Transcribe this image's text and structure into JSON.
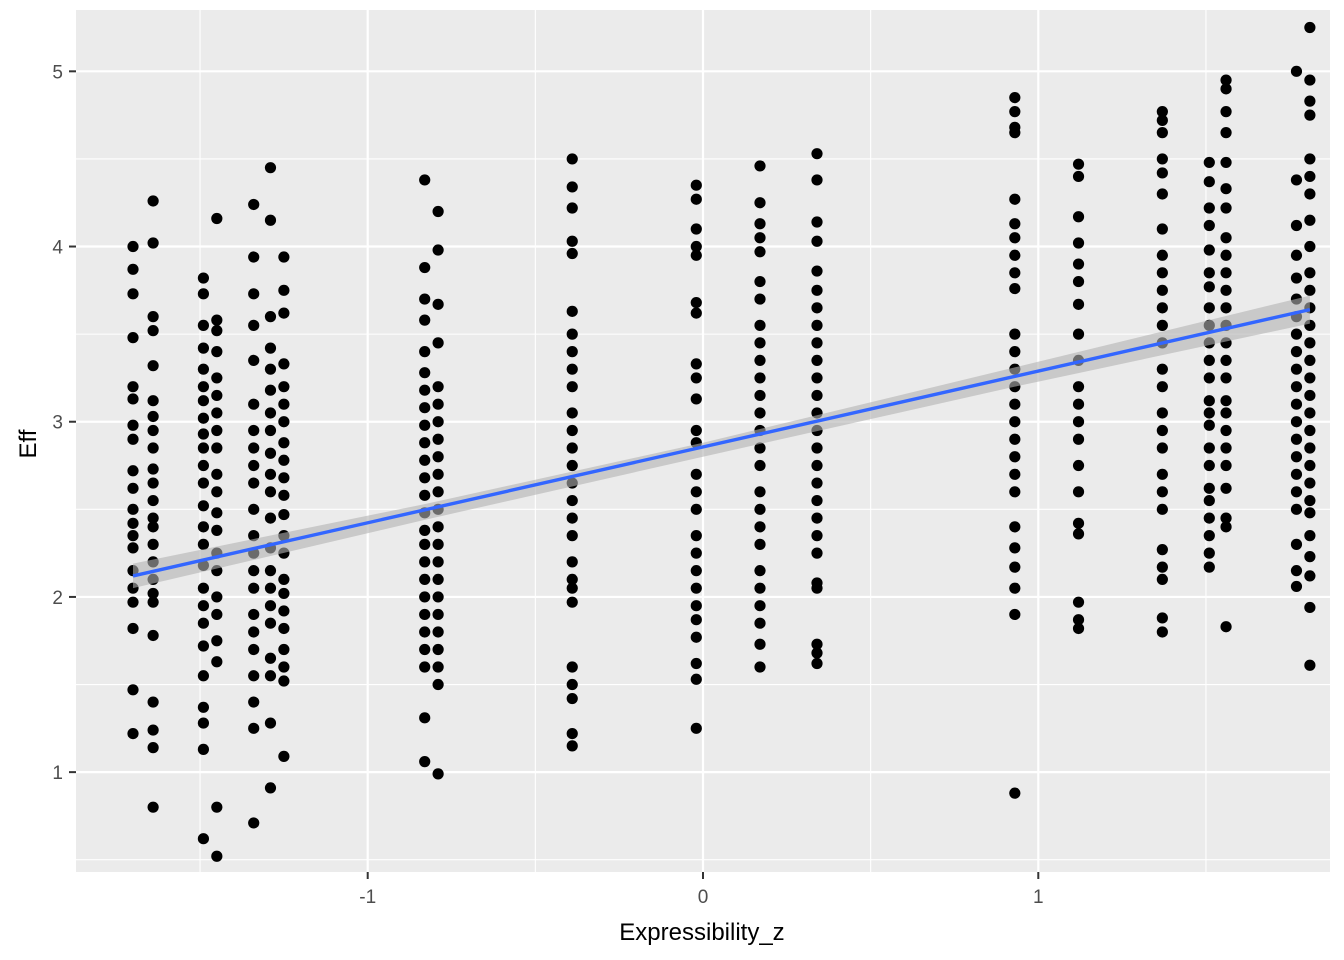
{
  "chart_data": {
    "type": "scatter",
    "xlabel": "Expressibility_z",
    "ylabel": "Eff",
    "xlim": [
      -1.87,
      1.87
    ],
    "ylim": [
      0.43,
      5.35
    ],
    "x_ticks": [
      -1,
      0,
      1
    ],
    "x_tick_labels": [
      "-1",
      "0",
      "1"
    ],
    "y_ticks": [
      1,
      2,
      3,
      4,
      5
    ],
    "y_tick_labels": [
      "1",
      "2",
      "3",
      "4",
      "5"
    ],
    "grid": true,
    "colors": {
      "panel": "#ebebeb",
      "grid": "#ffffff",
      "points": "#000000",
      "fit_line": "#3366ff",
      "ribbon": "#b3b3b3"
    },
    "groups": [
      {
        "x": -1.7,
        "values": [
          4.0,
          3.87,
          3.73,
          3.48,
          3.2,
          3.13,
          2.98,
          2.9,
          2.72,
          2.62,
          2.5,
          2.42,
          2.35,
          2.28,
          2.15,
          2.05,
          1.97,
          1.82,
          1.47,
          1.22
        ]
      },
      {
        "x": -1.64,
        "values": [
          4.26,
          4.02,
          3.6,
          3.52,
          3.32,
          3.12,
          3.03,
          2.95,
          2.85,
          2.73,
          2.65,
          2.55,
          2.45,
          2.4,
          2.3,
          2.2,
          2.1,
          2.02,
          1.97,
          1.78,
          1.4,
          1.24,
          1.14,
          0.8
        ]
      },
      {
        "x": -1.49,
        "values": [
          3.82,
          3.73,
          3.55,
          3.42,
          3.3,
          3.2,
          3.12,
          3.02,
          2.93,
          2.85,
          2.75,
          2.65,
          2.52,
          2.4,
          2.3,
          2.18,
          2.05,
          1.95,
          1.85,
          1.72,
          1.55,
          1.37,
          1.28,
          1.13,
          0.62
        ]
      },
      {
        "x": -1.45,
        "values": [
          4.16,
          3.58,
          3.52,
          3.4,
          3.25,
          3.15,
          3.05,
          2.95,
          2.85,
          2.7,
          2.6,
          2.48,
          2.38,
          2.25,
          2.15,
          2.0,
          1.9,
          1.75,
          1.63,
          0.8,
          0.52
        ]
      },
      {
        "x": -1.34,
        "values": [
          4.24,
          3.94,
          3.73,
          3.55,
          3.35,
          3.1,
          2.95,
          2.85,
          2.75,
          2.65,
          2.5,
          2.35,
          2.25,
          2.15,
          2.05,
          1.9,
          1.8,
          1.7,
          1.55,
          1.4,
          1.25,
          0.71
        ]
      },
      {
        "x": -1.29,
        "values": [
          4.45,
          4.15,
          3.6,
          3.42,
          3.3,
          3.18,
          3.05,
          2.95,
          2.82,
          2.7,
          2.6,
          2.45,
          2.28,
          2.15,
          2.05,
          1.95,
          1.85,
          1.65,
          1.55,
          1.28,
          0.91
        ]
      },
      {
        "x": -1.25,
        "values": [
          3.94,
          3.75,
          3.62,
          3.33,
          3.2,
          3.1,
          3.0,
          2.88,
          2.78,
          2.68,
          2.58,
          2.47,
          2.35,
          2.25,
          2.1,
          2.02,
          1.92,
          1.82,
          1.7,
          1.6,
          1.52,
          1.09
        ]
      },
      {
        "x": -0.83,
        "values": [
          4.38,
          3.88,
          3.7,
          3.58,
          3.4,
          3.28,
          3.18,
          3.08,
          2.98,
          2.88,
          2.78,
          2.68,
          2.58,
          2.48,
          2.38,
          2.3,
          2.2,
          2.1,
          2.0,
          1.9,
          1.8,
          1.7,
          1.6,
          1.31,
          1.06
        ]
      },
      {
        "x": -0.79,
        "values": [
          4.2,
          3.98,
          3.67,
          3.45,
          3.2,
          3.1,
          3.0,
          2.9,
          2.8,
          2.7,
          2.6,
          2.5,
          2.4,
          2.3,
          2.2,
          2.1,
          2.0,
          1.9,
          1.8,
          1.7,
          1.6,
          1.5,
          0.99
        ]
      },
      {
        "x": -0.39,
        "values": [
          4.5,
          4.34,
          4.22,
          4.03,
          3.96,
          3.63,
          3.5,
          3.4,
          3.3,
          3.2,
          3.05,
          2.95,
          2.85,
          2.75,
          2.65,
          2.55,
          2.45,
          2.35,
          2.2,
          2.1,
          2.05,
          1.97,
          1.6,
          1.5,
          1.42,
          1.22,
          1.15
        ]
      },
      {
        "x": -0.02,
        "values": [
          4.35,
          4.27,
          4.1,
          4.0,
          3.95,
          3.68,
          3.62,
          3.33,
          3.25,
          3.13,
          2.95,
          2.88,
          2.7,
          2.6,
          2.5,
          2.35,
          2.25,
          2.15,
          2.05,
          1.95,
          1.87,
          1.77,
          1.62,
          1.53,
          1.25
        ]
      },
      {
        "x": 0.17,
        "values": [
          4.46,
          4.25,
          4.13,
          4.05,
          3.97,
          3.8,
          3.7,
          3.55,
          3.45,
          3.35,
          3.25,
          3.15,
          3.05,
          2.95,
          2.85,
          2.75,
          2.6,
          2.5,
          2.4,
          2.3,
          2.15,
          2.05,
          1.95,
          1.85,
          1.73,
          1.6
        ]
      },
      {
        "x": 0.34,
        "values": [
          4.53,
          4.38,
          4.14,
          4.03,
          3.86,
          3.75,
          3.65,
          3.55,
          3.45,
          3.35,
          3.25,
          3.15,
          3.05,
          2.95,
          2.85,
          2.75,
          2.65,
          2.55,
          2.45,
          2.35,
          2.25,
          2.08,
          2.05,
          1.73,
          1.68,
          1.62
        ]
      },
      {
        "x": 0.93,
        "values": [
          4.85,
          4.77,
          4.68,
          4.65,
          4.27,
          4.13,
          4.05,
          3.95,
          3.85,
          3.76,
          3.5,
          3.4,
          3.3,
          3.2,
          3.1,
          3.0,
          2.9,
          2.8,
          2.7,
          2.6,
          2.4,
          2.28,
          2.17,
          2.05,
          1.9,
          0.88
        ]
      },
      {
        "x": 1.12,
        "values": [
          4.47,
          4.4,
          4.17,
          4.02,
          3.9,
          3.8,
          3.67,
          3.5,
          3.35,
          3.2,
          3.1,
          3.0,
          2.9,
          2.75,
          2.6,
          2.42,
          2.36,
          1.97,
          1.87,
          1.82
        ]
      },
      {
        "x": 1.37,
        "values": [
          4.77,
          4.72,
          4.65,
          4.5,
          4.42,
          4.3,
          4.1,
          3.95,
          3.85,
          3.75,
          3.65,
          3.55,
          3.45,
          3.3,
          3.2,
          3.05,
          2.95,
          2.85,
          2.7,
          2.6,
          2.5,
          2.27,
          2.17,
          2.1,
          1.88,
          1.8
        ]
      },
      {
        "x": 1.51,
        "values": [
          4.48,
          4.37,
          4.22,
          4.12,
          3.98,
          3.85,
          3.77,
          3.65,
          3.55,
          3.45,
          3.35,
          3.25,
          3.12,
          3.05,
          2.98,
          2.85,
          2.75,
          2.62,
          2.55,
          2.45,
          2.35,
          2.25,
          2.17
        ]
      },
      {
        "x": 1.56,
        "values": [
          4.95,
          4.9,
          4.77,
          4.65,
          4.48,
          4.33,
          4.22,
          4.05,
          3.95,
          3.85,
          3.75,
          3.65,
          3.55,
          3.45,
          3.35,
          3.25,
          3.12,
          3.05,
          2.95,
          2.85,
          2.75,
          2.62,
          2.45,
          2.4,
          1.83
        ]
      },
      {
        "x": 1.77,
        "values": [
          5.0,
          4.38,
          4.12,
          3.95,
          3.82,
          3.7,
          3.6,
          3.5,
          3.4,
          3.3,
          3.2,
          3.1,
          3.0,
          2.9,
          2.8,
          2.7,
          2.6,
          2.5,
          2.3,
          2.15,
          2.06
        ]
      },
      {
        "x": 1.81,
        "values": [
          5.25,
          4.95,
          4.83,
          4.75,
          4.5,
          4.4,
          4.3,
          4.15,
          4.0,
          3.85,
          3.75,
          3.65,
          3.55,
          3.45,
          3.35,
          3.25,
          3.15,
          3.05,
          2.95,
          2.85,
          2.75,
          2.65,
          2.55,
          2.48,
          2.35,
          2.23,
          2.12,
          1.94,
          1.61
        ]
      }
    ],
    "fit_line": {
      "x": [
        -1.7,
        1.81
      ],
      "y": [
        2.12,
        3.64
      ]
    },
    "ribbon": {
      "x": [
        -1.7,
        -0.83,
        0.0,
        0.93,
        1.81
      ],
      "lower": [
        2.05,
        2.44,
        2.8,
        3.2,
        3.56
      ],
      "upper": [
        2.19,
        2.53,
        2.88,
        3.31,
        3.72
      ]
    }
  }
}
